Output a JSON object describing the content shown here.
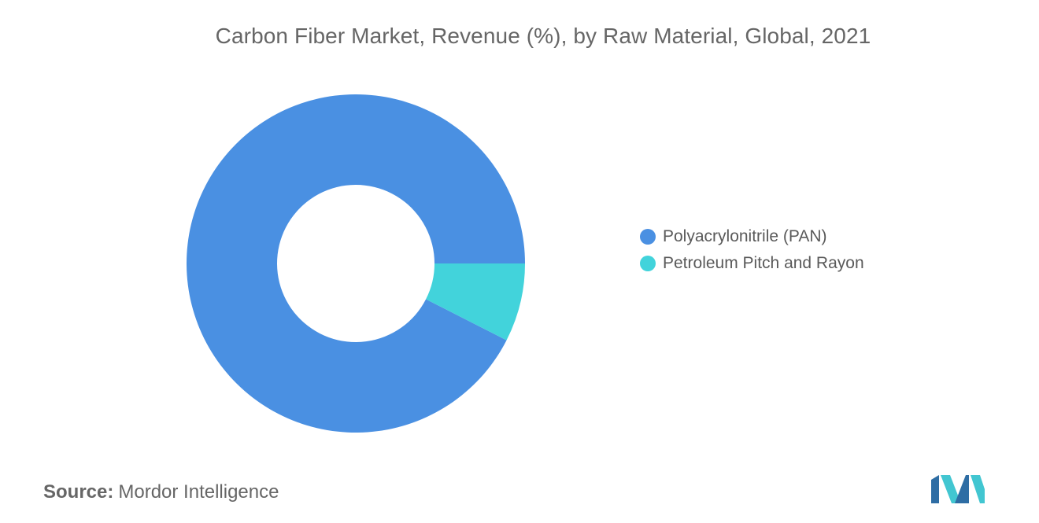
{
  "chart_data": {
    "type": "pie",
    "title": "Carbon Fiber Market, Revenue (%), by Raw Material, Global, 2021",
    "donut": true,
    "series": [
      {
        "name": "Polyacrylonitrile (PAN)",
        "value": 92.5,
        "color": "#4a90e2"
      },
      {
        "name": "Petroleum Pitch and Rayon",
        "value": 7.5,
        "color": "#42d3db"
      }
    ],
    "legend_position": "right"
  },
  "source": {
    "prefix": "Source:",
    "text": "Mordor Intelligence"
  },
  "logo": {
    "icon": "mordor-intelligence-logo",
    "colors": [
      "#2e6da4",
      "#42c6d1"
    ]
  }
}
